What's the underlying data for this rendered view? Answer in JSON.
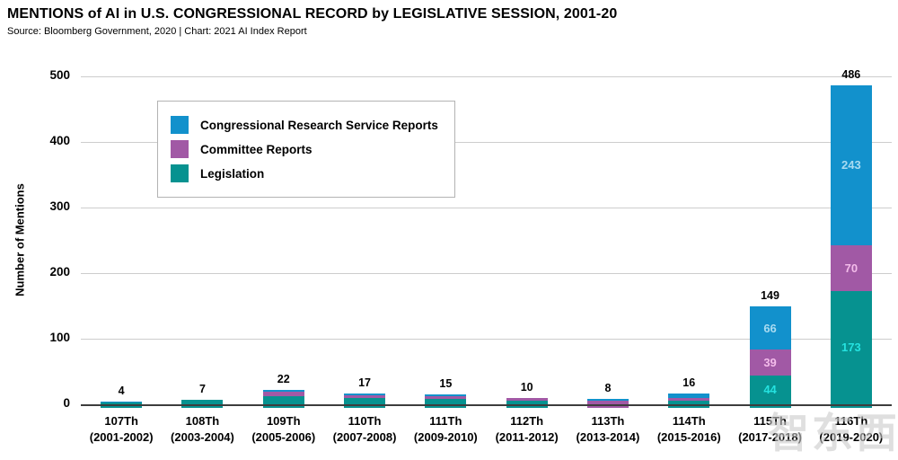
{
  "header": {
    "title": "MENTIONS of AI in U.S. CONGRESSIONAL RECORD by LEGISLATIVE SESSION, 2001-20",
    "source_line": "Source: Bloomberg Government, 2020 | Chart: 2021 AI Index Report"
  },
  "watermark": "智东西",
  "chart_data": {
    "type": "bar",
    "stacked": true,
    "title": "MENTIONS of AI in U.S. CONGRESSIONAL RECORD by LEGISLATIVE SESSION, 2001-20",
    "xlabel": "",
    "ylabel": "Number of Mentions",
    "ylim": [
      0,
      500
    ],
    "yticks": [
      0,
      100,
      200,
      300,
      400,
      500
    ],
    "grid": true,
    "legend_position": "upper-left-inside",
    "categories": [
      "107Th",
      "108Th",
      "109Th",
      "110Th",
      "111Th",
      "112Th",
      "113Th",
      "114Th",
      "115Th",
      "116Th"
    ],
    "category_sublabels": [
      "(2001-2002)",
      "(2003-2004)",
      "(2005-2006)",
      "(2007-2008)",
      "(2009-2010)",
      "(2011-2012)",
      "(2013-2014)",
      "(2015-2016)",
      "(2017-2018)",
      "(2019-2020)"
    ],
    "totals": [
      4,
      7,
      22,
      17,
      15,
      10,
      8,
      16,
      149,
      486
    ],
    "stack_order_bottom_to_top": [
      "Legislation",
      "Committee Reports",
      "Congressional Research Service Reports"
    ],
    "series": [
      {
        "name": "Congressional Research Service Reports",
        "color": "#1291cc",
        "label_color": "#a9dbf1",
        "values": [
          1,
          0,
          3,
          3,
          2,
          1,
          3,
          7,
          66,
          243
        ]
      },
      {
        "name": "Committee Reports",
        "color": "#a159a5",
        "label_color": "#f3bcea",
        "values": [
          0,
          0,
          7,
          5,
          5,
          3,
          5,
          4,
          39,
          70
        ]
      },
      {
        "name": "Legislation",
        "color": "#069290",
        "label_color": "#25e2e0",
        "values": [
          3,
          7,
          12,
          9,
          8,
          6,
          0,
          5,
          44,
          173
        ]
      }
    ],
    "labeled_segments_note": "numeric labels shown inside segments only for 115Th (66, 39, 44) and 116Th (243, 70, 173); totals shown above every bar"
  }
}
